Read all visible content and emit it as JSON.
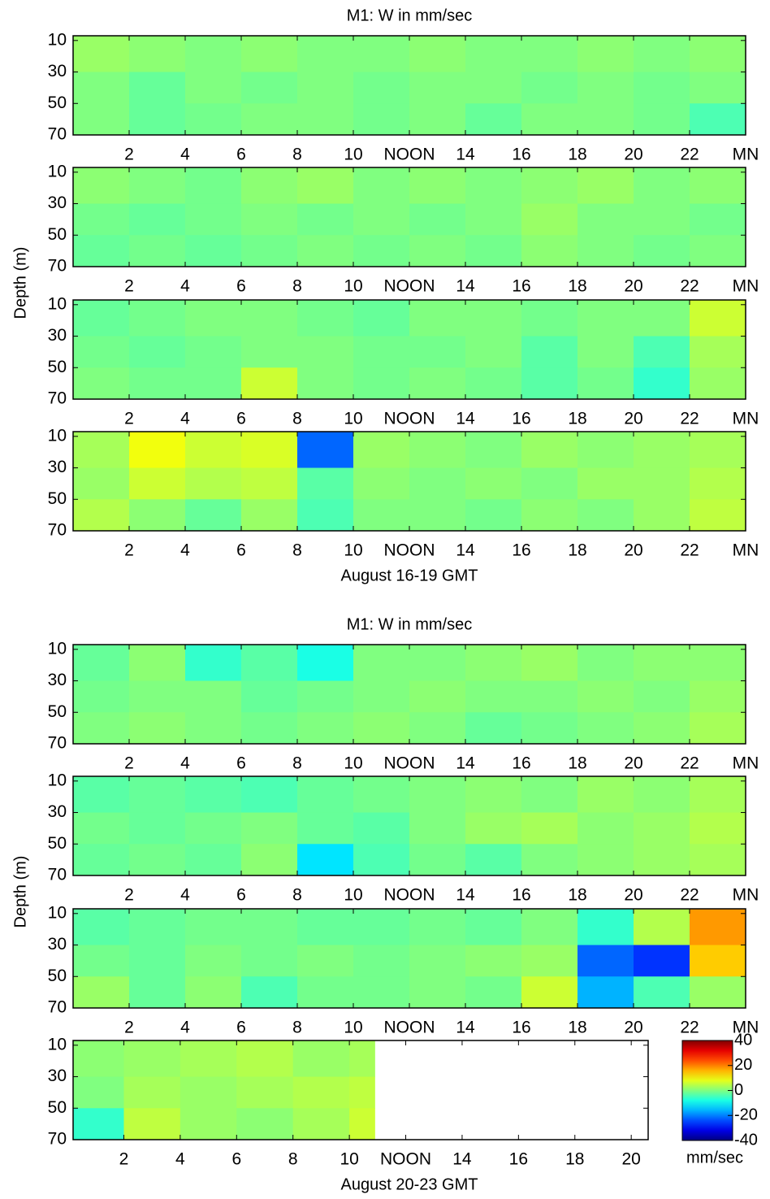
{
  "chart_data": [
    {
      "type": "heatmap",
      "title": "M1: W in mm/sec",
      "xlim": [
        0,
        24
      ],
      "ylim": [
        7,
        70
      ],
      "y_reversed": true,
      "xticks": [
        2,
        4,
        6,
        8,
        10,
        {
          "value": 12,
          "label": "NOON"
        },
        14,
        16,
        18,
        20,
        22,
        {
          "value": 24,
          "label": "MN"
        }
      ],
      "yticks": [
        10,
        30,
        50,
        70
      ],
      "xbins": [
        0,
        2,
        4,
        6,
        8,
        10,
        12,
        14,
        16,
        18,
        20,
        22,
        24
      ],
      "ybins": [
        7,
        30,
        50,
        70
      ],
      "z": [
        [
          2,
          1,
          0,
          1,
          0,
          0,
          1,
          0,
          0,
          1,
          0,
          1
        ],
        [
          0,
          -2,
          0,
          -1,
          0,
          -1,
          0,
          0,
          -1,
          0,
          -1,
          0
        ],
        [
          0,
          -2,
          -1,
          0,
          0,
          -1,
          0,
          -2,
          0,
          0,
          -1,
          -4
        ]
      ]
    },
    {
      "type": "heatmap",
      "ylabel": "Depth (m)",
      "xlim": [
        0,
        24
      ],
      "ylim": [
        7,
        70
      ],
      "y_reversed": true,
      "xticks": [
        2,
        4,
        6,
        8,
        10,
        {
          "value": 12,
          "label": "NOON"
        },
        14,
        16,
        18,
        20,
        22,
        {
          "value": 24,
          "label": "MN"
        }
      ],
      "yticks": [
        10,
        30,
        50,
        70
      ],
      "xbins": [
        0,
        2,
        4,
        6,
        8,
        10,
        12,
        14,
        16,
        18,
        20,
        22,
        24
      ],
      "ybins": [
        7,
        30,
        50,
        70
      ],
      "z": [
        [
          1,
          0,
          -1,
          1,
          2,
          0,
          1,
          0,
          1,
          2,
          0,
          1
        ],
        [
          -1,
          -2,
          -1,
          0,
          -1,
          0,
          -1,
          0,
          2,
          0,
          0,
          -1
        ],
        [
          -2,
          -1,
          -2,
          -1,
          0,
          -1,
          0,
          -1,
          1,
          0,
          -1,
          0
        ]
      ]
    },
    {
      "type": "heatmap",
      "xlim": [
        0,
        24
      ],
      "ylim": [
        7,
        70
      ],
      "y_reversed": true,
      "xticks": [
        2,
        4,
        6,
        8,
        10,
        {
          "value": 12,
          "label": "NOON"
        },
        14,
        16,
        18,
        20,
        22,
        {
          "value": 24,
          "label": "MN"
        }
      ],
      "yticks": [
        10,
        30,
        50,
        70
      ],
      "xbins": [
        0,
        2,
        4,
        6,
        8,
        10,
        12,
        14,
        16,
        18,
        20,
        22,
        24
      ],
      "ybins": [
        7,
        30,
        50,
        70
      ],
      "z": [
        [
          -2,
          -1,
          0,
          0,
          -1,
          -2,
          0,
          0,
          -1,
          0,
          0,
          6
        ],
        [
          -1,
          -2,
          -1,
          0,
          0,
          -1,
          -1,
          0,
          -3,
          0,
          -4,
          3
        ],
        [
          0,
          -1,
          -1,
          6,
          0,
          -1,
          0,
          -1,
          -3,
          -1,
          -6,
          2
        ]
      ]
    },
    {
      "type": "heatmap",
      "xlabel": "August 16-19 GMT",
      "xlim": [
        0,
        24
      ],
      "ylim": [
        7,
        70
      ],
      "y_reversed": true,
      "xticks": [
        2,
        4,
        6,
        8,
        10,
        {
          "value": 12,
          "label": "NOON"
        },
        14,
        16,
        18,
        20,
        22,
        {
          "value": 24,
          "label": "MN"
        }
      ],
      "yticks": [
        10,
        30,
        50,
        70
      ],
      "xbins": [
        0,
        2,
        4,
        6,
        8,
        10,
        12,
        14,
        16,
        18,
        20,
        22,
        24
      ],
      "ybins": [
        7,
        30,
        50,
        70
      ],
      "z": [
        [
          3,
          9,
          6,
          7,
          -22,
          2,
          1,
          0,
          2,
          1,
          2,
          3
        ],
        [
          2,
          6,
          4,
          5,
          -3,
          1,
          0,
          1,
          0,
          2,
          2,
          4
        ],
        [
          4,
          1,
          -2,
          2,
          -4,
          0,
          0,
          -1,
          1,
          0,
          2,
          5
        ]
      ]
    },
    {
      "type": "heatmap",
      "title": "M1: W in mm/sec",
      "xlim": [
        0,
        24
      ],
      "ylim": [
        7,
        70
      ],
      "y_reversed": true,
      "xticks": [
        2,
        4,
        6,
        8,
        10,
        {
          "value": 12,
          "label": "NOON"
        },
        14,
        16,
        18,
        20,
        22,
        {
          "value": 24,
          "label": "MN"
        }
      ],
      "yticks": [
        10,
        30,
        50,
        70
      ],
      "xbins": [
        0,
        2,
        4,
        6,
        8,
        10,
        12,
        14,
        16,
        18,
        20,
        22,
        24
      ],
      "ybins": [
        7,
        30,
        50,
        70
      ],
      "z": [
        [
          -2,
          1,
          -6,
          -3,
          -8,
          0,
          0,
          1,
          2,
          0,
          1,
          1
        ],
        [
          -1,
          0,
          0,
          -2,
          -1,
          0,
          1,
          0,
          0,
          1,
          0,
          2
        ],
        [
          0,
          1,
          0,
          -1,
          0,
          1,
          0,
          -2,
          -1,
          0,
          1,
          3
        ]
      ]
    },
    {
      "type": "heatmap",
      "ylabel": "Depth (m)",
      "xlim": [
        0,
        24
      ],
      "ylim": [
        7,
        70
      ],
      "y_reversed": true,
      "xticks": [
        2,
        4,
        6,
        8,
        10,
        {
          "value": 12,
          "label": "NOON"
        },
        14,
        16,
        18,
        20,
        22,
        {
          "value": 24,
          "label": "MN"
        }
      ],
      "yticks": [
        10,
        30,
        50,
        70
      ],
      "xbins": [
        0,
        2,
        4,
        6,
        8,
        10,
        12,
        14,
        16,
        18,
        20,
        22,
        24
      ],
      "ybins": [
        7,
        30,
        50,
        70
      ],
      "z": [
        [
          -3,
          -2,
          -3,
          -4,
          -2,
          -1,
          0,
          1,
          0,
          2,
          1,
          3
        ],
        [
          -1,
          -2,
          -1,
          0,
          -2,
          -3,
          0,
          2,
          3,
          1,
          2,
          4
        ],
        [
          -2,
          -1,
          -2,
          1,
          -12,
          -4,
          -1,
          -3,
          0,
          1,
          2,
          3
        ]
      ]
    },
    {
      "type": "heatmap",
      "xlim": [
        0,
        24
      ],
      "ylim": [
        7,
        70
      ],
      "y_reversed": true,
      "xticks": [
        2,
        4,
        6,
        8,
        10,
        {
          "value": 12,
          "label": "NOON"
        },
        14,
        16,
        18,
        20,
        22,
        {
          "value": 24,
          "label": "MN"
        }
      ],
      "yticks": [
        10,
        30,
        50,
        70
      ],
      "xbins": [
        0,
        2,
        4,
        6,
        8,
        10,
        12,
        14,
        16,
        18,
        20,
        22,
        24
      ],
      "ybins": [
        7,
        30,
        50,
        70
      ],
      "z": [
        [
          -3,
          -2,
          -1,
          -1,
          -2,
          -2,
          -1,
          -2,
          0,
          -6,
          4,
          18
        ],
        [
          -1,
          -2,
          0,
          -1,
          0,
          -1,
          0,
          1,
          2,
          -22,
          -26,
          14
        ],
        [
          2,
          -2,
          1,
          -4,
          -1,
          -1,
          0,
          -1,
          6,
          -16,
          -4,
          2
        ]
      ]
    },
    {
      "type": "heatmap",
      "xlabel": "August 20-23 GMT",
      "xlim": [
        0.2,
        20.6
      ],
      "ylim": [
        7,
        70
      ],
      "y_reversed": true,
      "xticks": [
        2,
        4,
        6,
        8,
        10,
        {
          "value": 12,
          "label": "NOON"
        },
        14,
        16,
        18,
        20
      ],
      "yticks": [
        10,
        30,
        50,
        70
      ],
      "xbins": [
        0.2,
        2,
        4,
        6,
        8,
        10,
        10.9
      ],
      "ybins": [
        7,
        30,
        50,
        70
      ],
      "z": [
        [
          1,
          2,
          3,
          4,
          2,
          3
        ],
        [
          0,
          3,
          2,
          3,
          4,
          5
        ],
        [
          -6,
          5,
          2,
          1,
          3,
          6
        ]
      ]
    },
    {
      "type": "colorbar",
      "label": "mm/sec",
      "ylim": [
        -40,
        40
      ],
      "yticks": [
        40,
        20,
        0,
        -20,
        -40
      ]
    }
  ]
}
